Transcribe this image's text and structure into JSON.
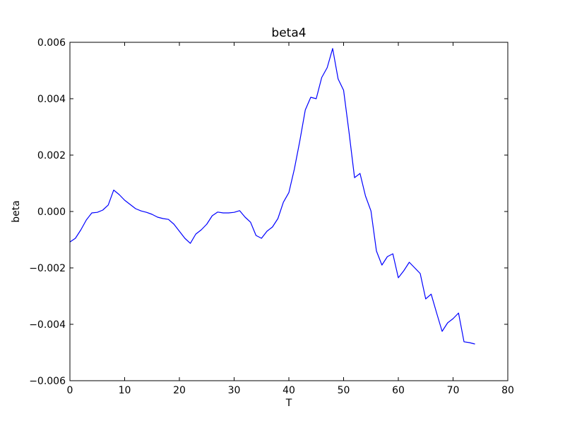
{
  "chart_data": {
    "type": "line",
    "title": "beta4",
    "xlabel": "T",
    "ylabel": "beta",
    "xlim": [
      0,
      80
    ],
    "ylim": [
      -0.006,
      0.006
    ],
    "xticks": [
      "0",
      "10",
      "20",
      "30",
      "40",
      "50",
      "60",
      "70",
      "80"
    ],
    "yticks": [
      "−0.006",
      "−0.004",
      "−0.002",
      "0.000",
      "0.002",
      "0.004",
      "0.006"
    ],
    "grid": false,
    "line_color": "#0000ff",
    "series": [
      {
        "x": [
          0,
          1,
          2,
          3,
          4,
          5,
          6,
          7,
          8,
          9,
          10,
          11,
          12,
          13,
          14,
          15,
          16,
          17,
          18,
          19,
          20,
          21,
          22,
          23,
          24,
          25,
          26,
          27,
          28,
          29,
          30,
          31,
          32,
          33,
          34,
          35,
          36,
          37,
          38,
          39,
          40,
          41,
          42,
          43,
          44,
          45,
          46,
          47,
          48,
          49,
          50,
          51,
          52,
          53,
          54,
          55,
          56,
          57,
          58,
          59,
          60,
          61,
          62,
          63,
          64,
          65,
          66,
          67,
          68,
          69,
          70,
          71,
          72,
          73,
          74
        ],
        "values": [
          -0.00108,
          -0.00095,
          -0.00065,
          -0.0003,
          -5e-05,
          -3e-05,
          5e-05,
          0.00023,
          0.00076,
          0.0006,
          0.0004,
          0.00025,
          0.0001,
          2e-05,
          -3e-05,
          -0.0001,
          -0.0002,
          -0.00025,
          -0.00028,
          -0.00045,
          -0.0007,
          -0.00095,
          -0.00113,
          -0.0008,
          -0.00065,
          -0.00045,
          -0.00015,
          -2e-05,
          -5e-05,
          -5e-05,
          -3e-05,
          3e-05,
          -0.0002,
          -0.00038,
          -0.00085,
          -0.00095,
          -0.0007,
          -0.00055,
          -0.00025,
          0.00033,
          0.00067,
          0.0015,
          0.0025,
          0.0036,
          0.00405,
          0.004,
          0.00475,
          0.0051,
          0.00578,
          0.0047,
          0.0043,
          0.0028,
          0.0012,
          0.00135,
          0.00055,
          2e-05,
          -0.0014,
          -0.0019,
          -0.0016,
          -0.0015,
          -0.00235,
          -0.0021,
          -0.0018,
          -0.002,
          -0.0022,
          -0.0031,
          -0.00293,
          -0.0036,
          -0.00425,
          -0.00395,
          -0.0038,
          -0.0036,
          -0.00462,
          -0.00465,
          -0.0047
        ]
      }
    ]
  }
}
